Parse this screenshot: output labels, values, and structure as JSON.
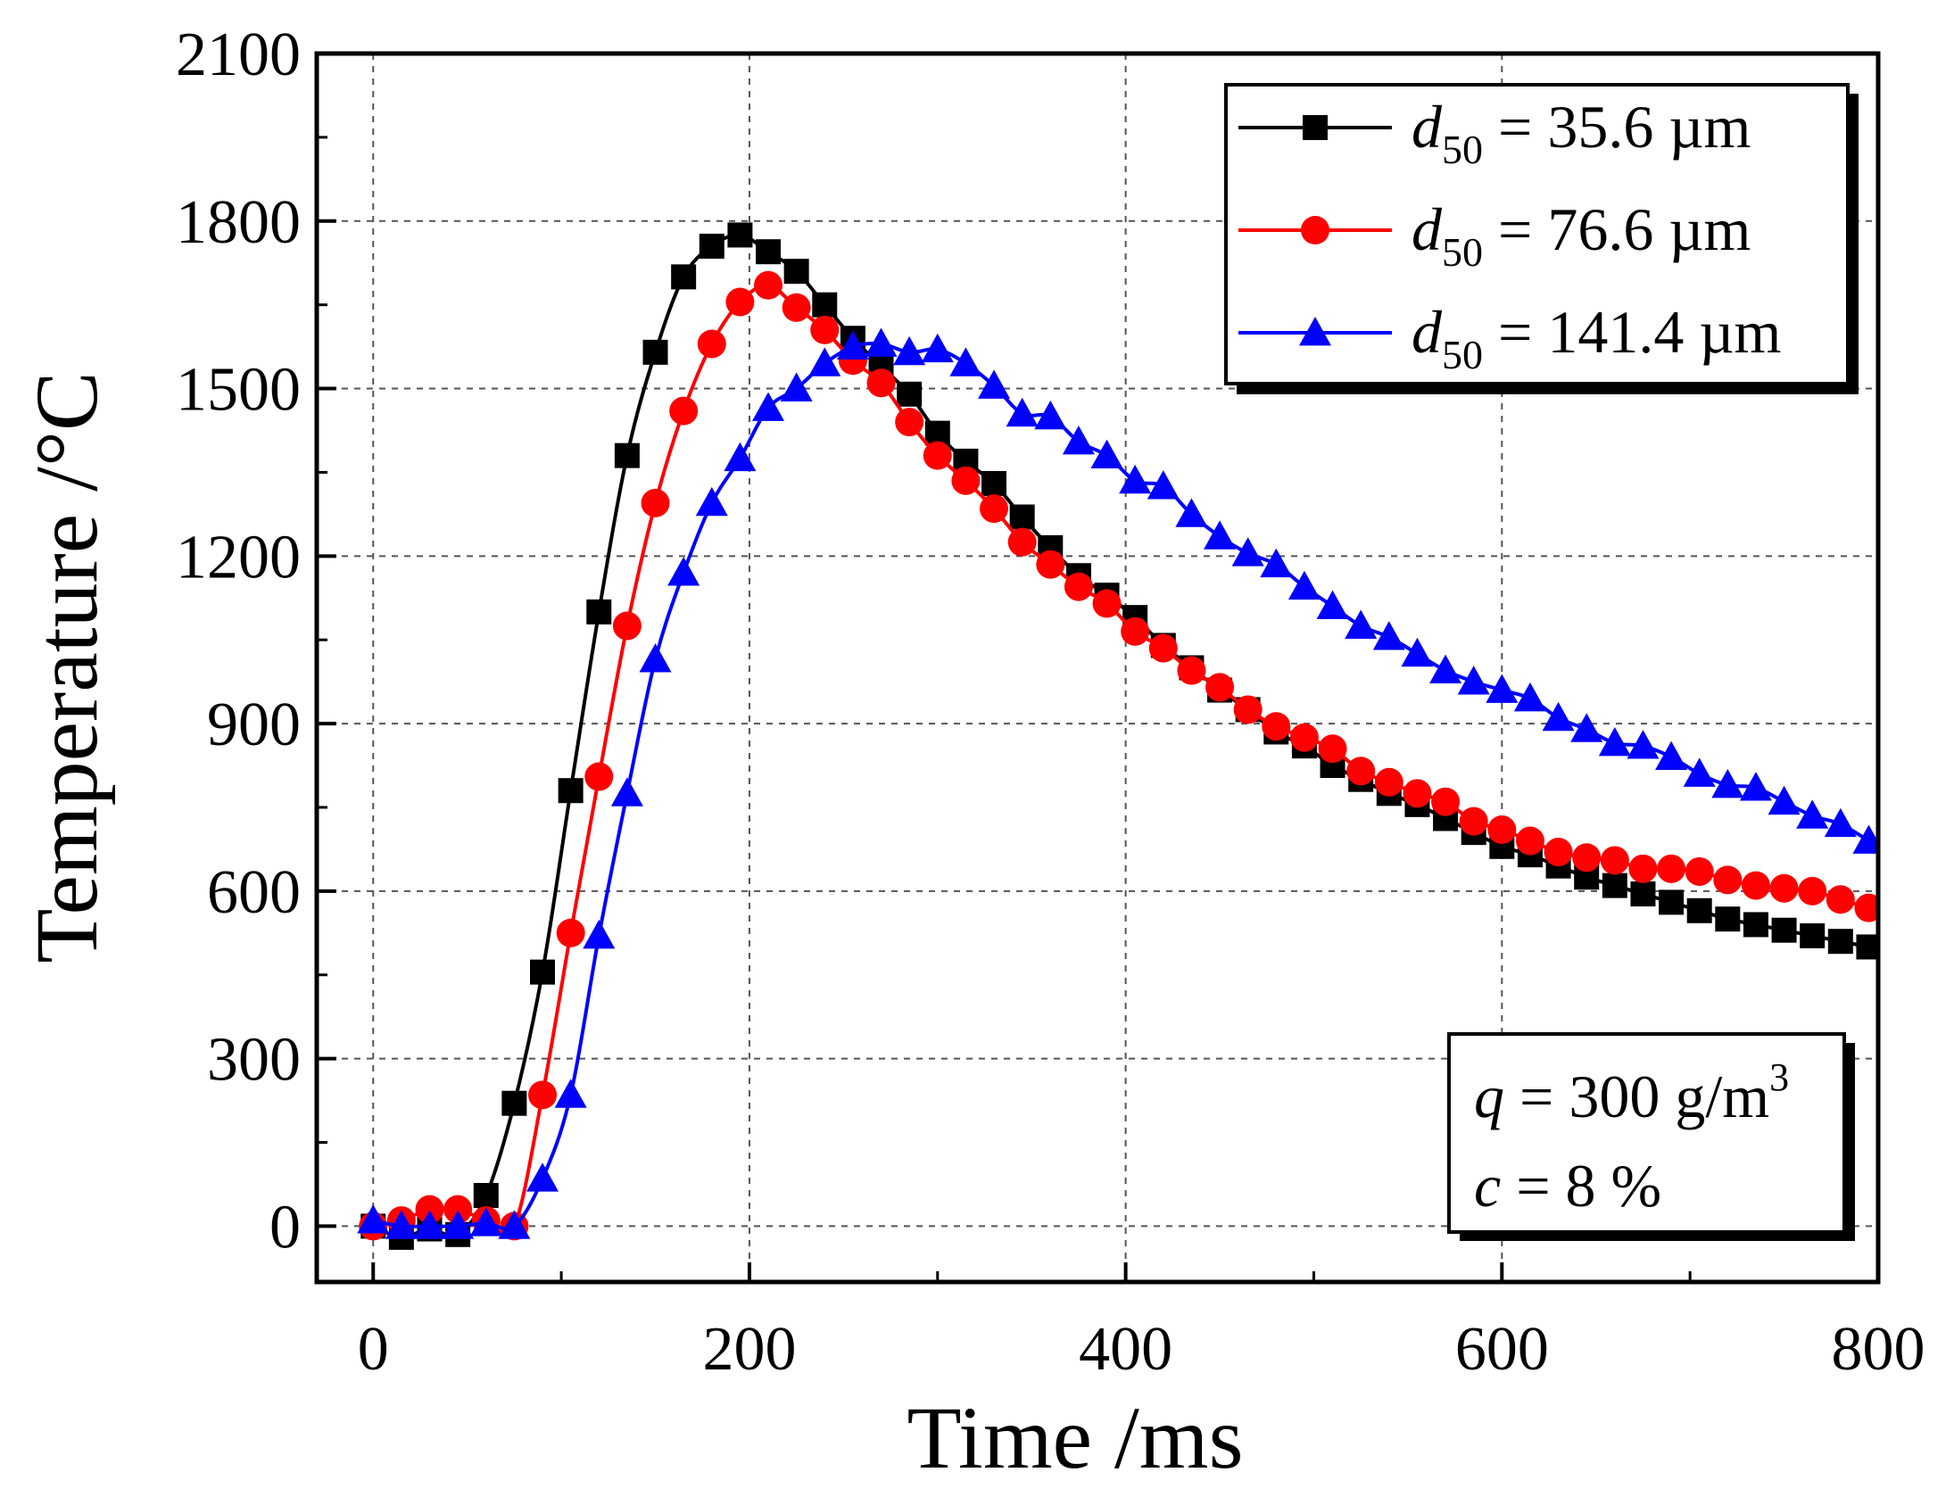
{
  "chart_data": {
    "type": "line",
    "title": "",
    "xlabel": "Time /ms",
    "ylabel": "Temperature /°C",
    "xlim": [
      -30,
      800
    ],
    "ylim": [
      -100,
      2100
    ],
    "xticks": [
      0,
      200,
      400,
      600,
      800
    ],
    "xtick_labels": [
      "0",
      "200",
      "400",
      "600",
      "800"
    ],
    "yticks": [
      0,
      300,
      600,
      900,
      1200,
      1500,
      1800,
      2100
    ],
    "ytick_labels": [
      "0",
      "300",
      "600",
      "900",
      "1200",
      "1500",
      "1800",
      "2100"
    ],
    "grid": true,
    "legend_position": "top-right",
    "series": [
      {
        "name": "d50 = 35.6 µm",
        "label_var": "d",
        "label_sub": "50",
        "label_rest": " = 35.6 µm",
        "color": "#000000",
        "marker": "square",
        "x": [
          0,
          15,
          30,
          45,
          60,
          75,
          90,
          105,
          120,
          135,
          150,
          165,
          180,
          195,
          210,
          225,
          240,
          255,
          270,
          285,
          300,
          315,
          330,
          345,
          360,
          375,
          390,
          405,
          420,
          435,
          450,
          465,
          480,
          495,
          510,
          525,
          540,
          555,
          570,
          585,
          600,
          615,
          630,
          645,
          660,
          675,
          690,
          705,
          720,
          735,
          750,
          765,
          780,
          795
        ],
        "y": [
          0,
          -20,
          -5,
          -15,
          55,
          220,
          455,
          780,
          1100,
          1380,
          1565,
          1700,
          1755,
          1775,
          1745,
          1710,
          1650,
          1590,
          1540,
          1490,
          1420,
          1370,
          1330,
          1270,
          1215,
          1165,
          1130,
          1090,
          1040,
          1000,
          960,
          925,
          885,
          860,
          825,
          800,
          775,
          755,
          730,
          705,
          680,
          665,
          645,
          625,
          610,
          595,
          580,
          565,
          550,
          540,
          530,
          520,
          510,
          500
        ]
      },
      {
        "name": "d50 = 76.6 µm",
        "label_var": "d",
        "label_sub": "50",
        "label_rest": " = 76.6 µm",
        "color": "#ff0000",
        "marker": "circle",
        "x": [
          0,
          15,
          30,
          45,
          60,
          75,
          90,
          105,
          120,
          135,
          150,
          165,
          180,
          195,
          210,
          225,
          240,
          255,
          270,
          285,
          300,
          315,
          330,
          345,
          360,
          375,
          390,
          405,
          420,
          435,
          450,
          465,
          480,
          495,
          510,
          525,
          540,
          555,
          570,
          585,
          600,
          615,
          630,
          645,
          660,
          675,
          690,
          705,
          720,
          735,
          750,
          765,
          780,
          795
        ],
        "y": [
          0,
          10,
          30,
          30,
          10,
          0,
          235,
          525,
          805,
          1075,
          1295,
          1460,
          1580,
          1655,
          1685,
          1645,
          1605,
          1550,
          1510,
          1440,
          1380,
          1335,
          1285,
          1225,
          1185,
          1145,
          1115,
          1065,
          1035,
          995,
          965,
          925,
          895,
          875,
          855,
          815,
          795,
          775,
          760,
          725,
          710,
          690,
          670,
          660,
          655,
          640,
          640,
          635,
          620,
          610,
          605,
          600,
          585,
          570
        ]
      },
      {
        "name": "d50 = 141.4 µm",
        "label_var": "d",
        "label_sub": "50",
        "label_rest": " = 141.4 µm",
        "color": "#0000ff",
        "marker": "triangle",
        "x": [
          0,
          15,
          30,
          45,
          60,
          75,
          90,
          105,
          120,
          135,
          150,
          165,
          180,
          195,
          210,
          225,
          240,
          255,
          270,
          285,
          300,
          315,
          330,
          345,
          360,
          375,
          390,
          405,
          420,
          435,
          450,
          465,
          480,
          495,
          510,
          525,
          540,
          555,
          570,
          585,
          600,
          615,
          630,
          645,
          660,
          675,
          690,
          705,
          720,
          735,
          750,
          765,
          780,
          795
        ],
        "y": [
          10,
          0,
          0,
          0,
          5,
          0,
          85,
          235,
          520,
          775,
          1015,
          1170,
          1295,
          1375,
          1465,
          1500,
          1545,
          1575,
          1580,
          1565,
          1570,
          1545,
          1505,
          1455,
          1450,
          1405,
          1380,
          1335,
          1325,
          1275,
          1235,
          1205,
          1185,
          1145,
          1110,
          1075,
          1055,
          1025,
          995,
          975,
          960,
          945,
          910,
          890,
          865,
          860,
          840,
          810,
          790,
          785,
          760,
          735,
          720,
          690
        ]
      }
    ],
    "annotation": {
      "q_var": "q",
      "q_text": " = 300 g/m",
      "q_sup": "3",
      "c_var": "c",
      "c_text": " = 8 %"
    }
  }
}
